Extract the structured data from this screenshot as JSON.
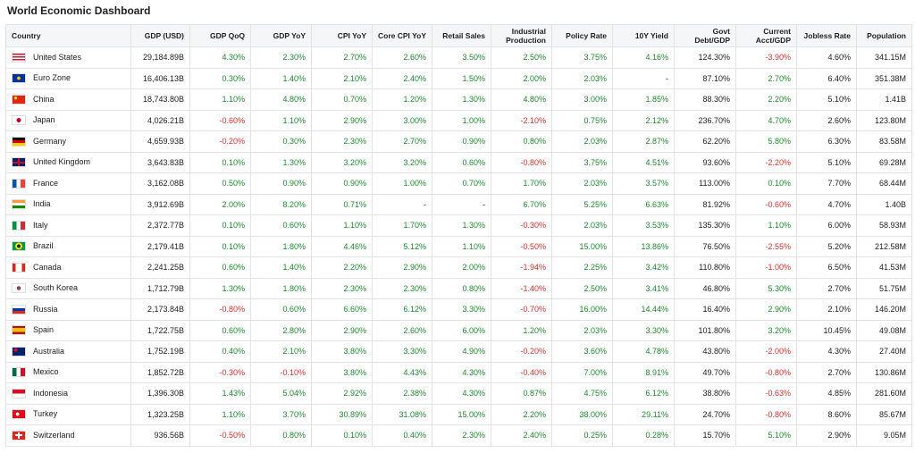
{
  "header": {
    "title": "World Economic Dashboard"
  },
  "table": {
    "columns": [
      "Country",
      "GDP (USD)",
      "GDP QoQ",
      "GDP YoY",
      "CPI YoY",
      "Core CPI YoY",
      "Retail Sales",
      "Industrial Production",
      "Policy Rate",
      "10Y Yield",
      "Govt Debt/GDP",
      "Current Acct/GDP",
      "Jobless Rate",
      "Population"
    ],
    "rows": [
      {
        "country": "United States",
        "cells": [
          "29,184.89B",
          "4.30%",
          "2.30%",
          "2.70%",
          "2.60%",
          "3.50%",
          "2.50%",
          "3.75%",
          "4.16%",
          "124.30%",
          "-3.90%",
          "4.60%",
          "341.15M"
        ]
      },
      {
        "country": "Euro Zone",
        "cells": [
          "16,406.13B",
          "0.30%",
          "1.40%",
          "2.10%",
          "2.40%",
          "1.50%",
          "2.00%",
          "2.03%",
          "-",
          "87.10%",
          "2.70%",
          "6.40%",
          "351.38M"
        ]
      },
      {
        "country": "China",
        "cells": [
          "18,743.80B",
          "1.10%",
          "4.80%",
          "0.70%",
          "1.20%",
          "1.30%",
          "4.80%",
          "3.00%",
          "1.85%",
          "88.30%",
          "2.20%",
          "5.10%",
          "1.41B"
        ]
      },
      {
        "country": "Japan",
        "cells": [
          "4,026.21B",
          "-0.60%",
          "1.10%",
          "2.90%",
          "3.00%",
          "1.00%",
          "-2.10%",
          "0.75%",
          "2.12%",
          "236.70%",
          "4.70%",
          "2.60%",
          "123.80M"
        ]
      },
      {
        "country": "Germany",
        "cells": [
          "4,659.93B",
          "-0.20%",
          "0.30%",
          "2.30%",
          "2.70%",
          "0.90%",
          "0.80%",
          "2.03%",
          "2.87%",
          "62.20%",
          "5.80%",
          "6.30%",
          "83.58M"
        ]
      },
      {
        "country": "United Kingdom",
        "cells": [
          "3,643.83B",
          "0.10%",
          "1.30%",
          "3.20%",
          "3.20%",
          "0.60%",
          "-0.80%",
          "3.75%",
          "4.51%",
          "93.60%",
          "-2.20%",
          "5.10%",
          "69.28M"
        ]
      },
      {
        "country": "France",
        "cells": [
          "3,162.08B",
          "0.50%",
          "0.90%",
          "0.90%",
          "1.00%",
          "0.70%",
          "1.70%",
          "2.03%",
          "3.57%",
          "113.00%",
          "0.10%",
          "7.70%",
          "68.44M"
        ]
      },
      {
        "country": "India",
        "cells": [
          "3,912.69B",
          "2.00%",
          "8.20%",
          "0.71%",
          "-",
          "-",
          "6.70%",
          "5.25%",
          "6.63%",
          "81.92%",
          "-0.60%",
          "4.70%",
          "1.40B"
        ]
      },
      {
        "country": "Italy",
        "cells": [
          "2,372.77B",
          "0.10%",
          "0.60%",
          "1.10%",
          "1.70%",
          "1.30%",
          "-0.30%",
          "2.03%",
          "3.53%",
          "135.30%",
          "1.10%",
          "6.00%",
          "58.93M"
        ]
      },
      {
        "country": "Brazil",
        "cells": [
          "2,179.41B",
          "0.10%",
          "1.80%",
          "4.46%",
          "5.12%",
          "1.10%",
          "-0.50%",
          "15.00%",
          "13.86%",
          "76.50%",
          "-2.55%",
          "5.20%",
          "212.58M"
        ]
      },
      {
        "country": "Canada",
        "cells": [
          "2,241.25B",
          "0.60%",
          "1.40%",
          "2.20%",
          "2.90%",
          "2.00%",
          "-1.94%",
          "2.25%",
          "3.42%",
          "110.80%",
          "-1.00%",
          "6.50%",
          "41.53M"
        ]
      },
      {
        "country": "South Korea",
        "cells": [
          "1,712.79B",
          "1.30%",
          "1.80%",
          "2.30%",
          "2.30%",
          "0.80%",
          "-1.40%",
          "2.50%",
          "3.41%",
          "46.80%",
          "5.30%",
          "2.70%",
          "51.75M"
        ]
      },
      {
        "country": "Russia",
        "cells": [
          "2,173.84B",
          "-0.80%",
          "0.60%",
          "6.60%",
          "6.12%",
          "3.30%",
          "-0.70%",
          "16.00%",
          "14.44%",
          "16.40%",
          "2.90%",
          "2.10%",
          "146.20M"
        ]
      },
      {
        "country": "Spain",
        "cells": [
          "1,722.75B",
          "0.60%",
          "2.80%",
          "2.90%",
          "2.60%",
          "6.00%",
          "1.20%",
          "2.03%",
          "3.30%",
          "101.80%",
          "3.20%",
          "10.45%",
          "49.08M"
        ]
      },
      {
        "country": "Australia",
        "cells": [
          "1,752.19B",
          "0.40%",
          "2.10%",
          "3.80%",
          "3.30%",
          "4.90%",
          "-0.20%",
          "3.60%",
          "4.78%",
          "43.80%",
          "-2.00%",
          "4.30%",
          "27.40M"
        ]
      },
      {
        "country": "Mexico",
        "cells": [
          "1,852.72B",
          "-0.30%",
          "-0.10%",
          "3.80%",
          "4.43%",
          "4.30%",
          "-0.40%",
          "7.00%",
          "8.91%",
          "49.70%",
          "-0.80%",
          "2.70%",
          "130.86M"
        ]
      },
      {
        "country": "Indonesia",
        "cells": [
          "1,396.30B",
          "1.43%",
          "5.04%",
          "2.92%",
          "2.38%",
          "4.30%",
          "0.87%",
          "4.75%",
          "6.12%",
          "38.80%",
          "-0.63%",
          "4.85%",
          "281.60M"
        ]
      },
      {
        "country": "Turkey",
        "cells": [
          "1,323.25B",
          "1.10%",
          "3.70%",
          "30.89%",
          "31.08%",
          "15.00%",
          "2.20%",
          "38.00%",
          "29.11%",
          "24.70%",
          "-0.80%",
          "8.60%",
          "85.67M"
        ]
      },
      {
        "country": "Switzerland",
        "cells": [
          "936.56B",
          "-0.50%",
          "0.80%",
          "0.10%",
          "0.40%",
          "2.30%",
          "2.40%",
          "0.25%",
          "0.28%",
          "15.70%",
          "5.10%",
          "2.90%",
          "9.05M"
        ]
      }
    ]
  }
}
